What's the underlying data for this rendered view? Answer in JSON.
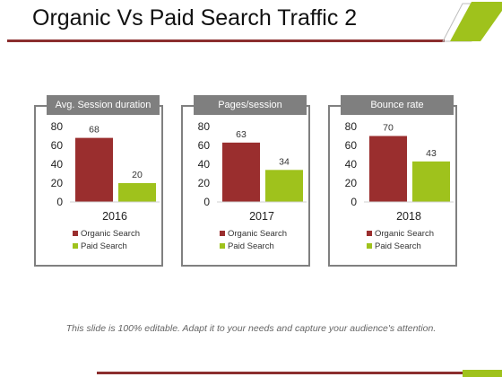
{
  "slide": {
    "title": "Organic Vs Paid Search Traffic 2",
    "footer": "This slide is 100% editable. Adapt it to your needs and capture your audience's attention."
  },
  "colors": {
    "organic": "#9a2e2e",
    "paid": "#9fc21c",
    "panel_border": "#808080",
    "label_bg": "#7f7f7f",
    "accent": "#8b2e2e",
    "accent_green": "#9fc21c"
  },
  "chart_data": [
    {
      "type": "bar",
      "title": "Avg. Session duration",
      "categories": [
        "2016"
      ],
      "series": [
        {
          "name": "Organic Search",
          "values": [
            68
          ]
        },
        {
          "name": "Paid Search",
          "values": [
            20
          ]
        }
      ],
      "yticks": [
        "0",
        "20",
        "40",
        "60",
        "80"
      ],
      "ylim": [
        0,
        80
      ],
      "legend": "bottom",
      "grid": false
    },
    {
      "type": "bar",
      "title": "Pages/session",
      "categories": [
        "2017"
      ],
      "series": [
        {
          "name": "Organic Search",
          "values": [
            63
          ]
        },
        {
          "name": "Paid Search",
          "values": [
            34
          ]
        }
      ],
      "yticks": [
        "0",
        "20",
        "40",
        "60",
        "80"
      ],
      "ylim": [
        0,
        80
      ],
      "legend": "bottom",
      "grid": false
    },
    {
      "type": "bar",
      "title": "Bounce rate",
      "categories": [
        "2018"
      ],
      "series": [
        {
          "name": "Organic Search",
          "values": [
            70
          ]
        },
        {
          "name": "Paid Search",
          "values": [
            43
          ]
        }
      ],
      "yticks": [
        "0",
        "20",
        "40",
        "60",
        "80"
      ],
      "ylim": [
        0,
        80
      ],
      "legend": "bottom",
      "grid": false
    }
  ]
}
